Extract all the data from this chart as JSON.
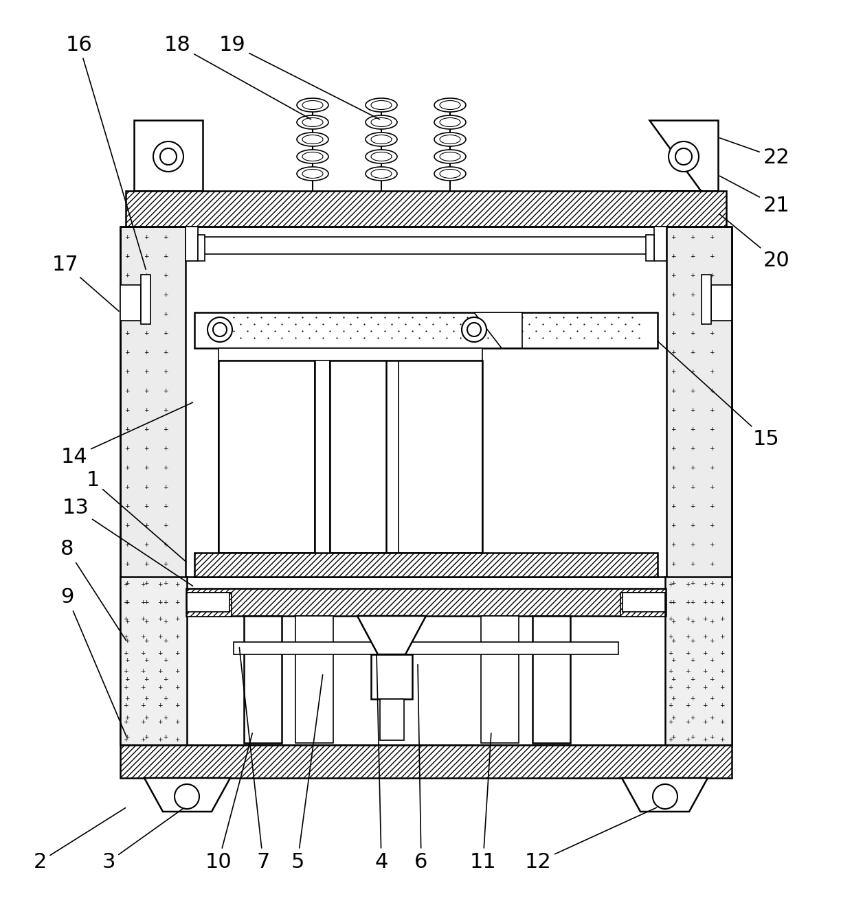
{
  "bg_color": "#ffffff",
  "line_color": "#000000",
  "figsize": [
    12.4,
    13.34
  ],
  "dpi": 100,
  "annotations": [
    [
      "16",
      213,
      395,
      115,
      65
    ],
    [
      "18",
      455,
      175,
      258,
      65
    ],
    [
      "19",
      555,
      175,
      338,
      65
    ],
    [
      "22",
      1045,
      200,
      1130,
      230
    ],
    [
      "21",
      1045,
      255,
      1130,
      300
    ],
    [
      "20",
      1045,
      310,
      1130,
      380
    ],
    [
      "17",
      175,
      455,
      95,
      385
    ],
    [
      "15",
      955,
      495,
      1115,
      640
    ],
    [
      "14",
      283,
      585,
      108,
      665
    ],
    [
      "1",
      273,
      820,
      135,
      700
    ],
    [
      "13",
      283,
      855,
      110,
      740
    ],
    [
      "8",
      185,
      935,
      98,
      800
    ],
    [
      "9",
      185,
      1075,
      98,
      870
    ],
    [
      "2",
      185,
      1175,
      58,
      1255
    ],
    [
      "3",
      270,
      1175,
      158,
      1255
    ],
    [
      "10",
      368,
      1065,
      318,
      1255
    ],
    [
      "7",
      348,
      940,
      383,
      1255
    ],
    [
      "5",
      470,
      980,
      433,
      1255
    ],
    [
      "4",
      548,
      950,
      555,
      1255
    ],
    [
      "6",
      608,
      965,
      613,
      1255
    ],
    [
      "11",
      715,
      1065,
      703,
      1255
    ],
    [
      "12",
      958,
      1175,
      783,
      1255
    ]
  ]
}
